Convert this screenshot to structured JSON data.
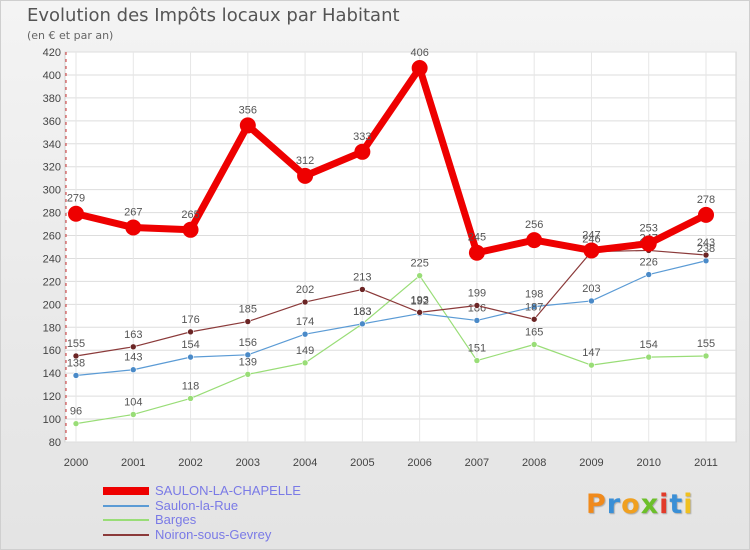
{
  "header": {
    "title": "Evolution des Impôts locaux par Habitant",
    "subtitle": "(en € et par an)"
  },
  "brand": {
    "text": "Proxiti",
    "letter_colors": [
      "#f08a1c",
      "#3a8fd6",
      "#f0a020",
      "#6cbf2a",
      "#e23b2a",
      "#3a8fd6",
      "#f0c020"
    ]
  },
  "chart_data": {
    "type": "line",
    "x": [
      "2000",
      "2001",
      "2002",
      "2003",
      "2004",
      "2005",
      "2006",
      "2007",
      "2008",
      "2009",
      "2010",
      "2011"
    ],
    "ylim": [
      80,
      420
    ],
    "yticks": [
      80,
      100,
      120,
      140,
      160,
      180,
      200,
      220,
      240,
      260,
      280,
      300,
      320,
      340,
      360,
      380,
      400,
      420
    ],
    "grid": true,
    "legend_position": "bottom-left",
    "series": [
      {
        "name": "SAULON-LA-CHAPELLE",
        "color": "#ee0000",
        "values": [
          279,
          267,
          265,
          356,
          312,
          333,
          406,
          245,
          256,
          247,
          253,
          278
        ]
      },
      {
        "name": "Saulon-la-Rue",
        "color": "#5b9bd5",
        "values": [
          138,
          143,
          154,
          156,
          174,
          183,
          192,
          186,
          198,
          203,
          226,
          238
        ]
      },
      {
        "name": "Barges",
        "color": "#99dd77",
        "values": [
          96,
          104,
          118,
          139,
          149,
          183,
          225,
          151,
          165,
          147,
          154,
          155
        ]
      },
      {
        "name": "Noiron-sous-Gevrey",
        "color": "#8b3a3a",
        "values": [
          155,
          163,
          176,
          185,
          202,
          213,
          193,
          199,
          187,
          246,
          247,
          243
        ]
      }
    ]
  }
}
